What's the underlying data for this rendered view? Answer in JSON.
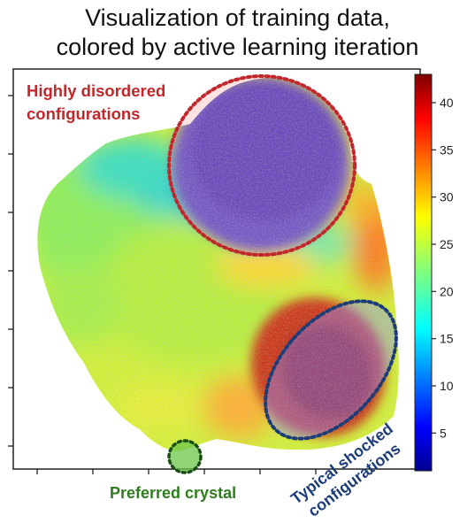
{
  "title_line1": "Visualization of training data,",
  "title_line2": "colored by active learning iteration",
  "annotations": {
    "disordered_line1": "Highly disordered",
    "disordered_line2": "configurations",
    "shocked_line1": "Typical shocked",
    "shocked_line2": "configurations",
    "crystal": "Preferred crystal"
  },
  "colors": {
    "disordered": "#c0282b",
    "shocked": "#1d3d78",
    "crystal": "#2e7d1e"
  },
  "chart_data": {
    "type": "heatmap",
    "title": "Visualization of training data, colored by active learning iteration",
    "xlabel": "",
    "ylabel": "",
    "colorbar": {
      "colormap": "jet",
      "range": [
        1,
        43
      ],
      "ticks": [
        5,
        10,
        15,
        20,
        25,
        30,
        35,
        40
      ]
    },
    "regions": [
      {
        "label": "Highly disordered configurations",
        "dominant_iteration": 8
      },
      {
        "label": "Typical shocked configurations",
        "dominant_iteration": 38
      },
      {
        "label": "Preferred crystal",
        "dominant_iteration": 26
      }
    ]
  }
}
